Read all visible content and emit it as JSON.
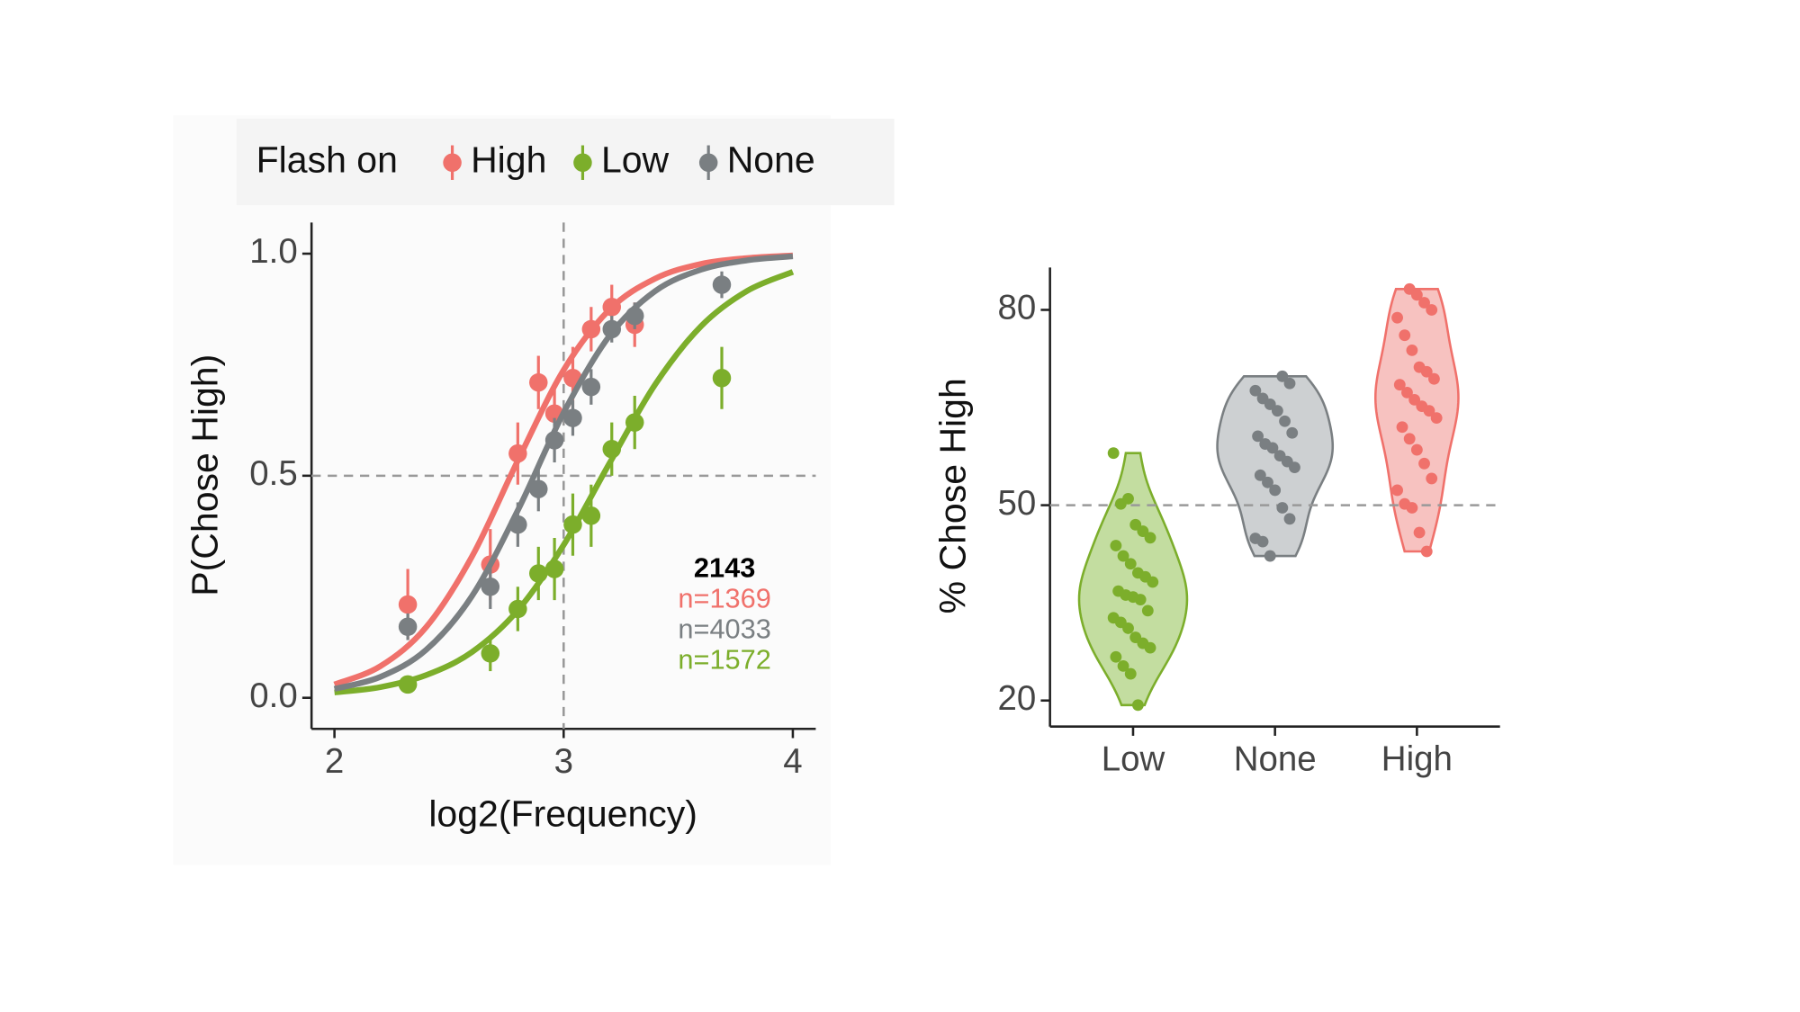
{
  "chart_data": [
    {
      "type": "psychometric",
      "xlabel": "log2(Frequency)",
      "ylabel": "P(Chose High)",
      "legend_title": "Flash on",
      "xlim": [
        1.9,
        4.1
      ],
      "xticks": [
        2,
        3,
        4
      ],
      "ylim": [
        -0.07,
        1.07
      ],
      "yticks": [
        {
          "value": 0,
          "label": "0.0"
        },
        0.5,
        {
          "value": 1,
          "label": "1.0"
        }
      ],
      "vline": 3,
      "hline": 0.5,
      "fit_x": [
        2.0,
        2.2,
        2.4,
        2.6,
        2.8,
        3.0,
        3.2,
        3.4,
        3.6,
        3.8,
        4.0
      ],
      "series": [
        {
          "name": "High",
          "color": "#F0716B",
          "x": [
            2.32,
            2.68,
            2.8,
            2.89,
            2.96,
            3.04,
            3.12,
            3.21,
            3.31
          ],
          "values": [
            0.21,
            0.3,
            0.55,
            0.71,
            0.64,
            0.72,
            0.83,
            0.88,
            0.84
          ],
          "errors": [
            0.08,
            0.08,
            0.07,
            0.06,
            0.07,
            0.07,
            0.05,
            0.05,
            0.05
          ],
          "fit": [
            0.03,
            0.071,
            0.159,
            0.318,
            0.534,
            0.738,
            0.874,
            0.944,
            0.977,
            0.99,
            0.996
          ]
        },
        {
          "name": "Low",
          "color": "#7CAE2B",
          "x": [
            2.32,
            2.68,
            2.8,
            2.89,
            2.96,
            3.04,
            3.12,
            3.21,
            3.31,
            3.69
          ],
          "values": [
            0.03,
            0.1,
            0.2,
            0.28,
            0.29,
            0.39,
            0.41,
            0.56,
            0.62,
            0.72
          ],
          "errors": [
            0.02,
            0.04,
            0.05,
            0.06,
            0.07,
            0.07,
            0.07,
            0.06,
            0.06,
            0.07
          ],
          "fit": [
            0.012,
            0.024,
            0.051,
            0.103,
            0.197,
            0.344,
            0.528,
            0.706,
            0.837,
            0.916,
            0.959
          ]
        },
        {
          "name": "None",
          "color": "#7A7F82",
          "x": [
            2.32,
            2.68,
            2.8,
            2.89,
            2.96,
            3.04,
            3.12,
            3.21,
            3.31,
            3.69
          ],
          "values": [
            0.16,
            0.25,
            0.39,
            0.47,
            0.58,
            0.63,
            0.7,
            0.83,
            0.86,
            0.93
          ],
          "errors": [
            0.03,
            0.05,
            0.05,
            0.05,
            0.05,
            0.04,
            0.04,
            0.03,
            0.03,
            0.03
          ],
          "fit": [
            0.02,
            0.047,
            0.108,
            0.229,
            0.422,
            0.642,
            0.815,
            0.916,
            0.964,
            0.985,
            0.994
          ]
        }
      ],
      "annotations": [
        {
          "text": "2143",
          "color": "#000000"
        },
        {
          "text": "n=1369",
          "color": "#F0716B"
        },
        {
          "text": "n=4033",
          "color": "#7A7F82"
        },
        {
          "text": "n=1572",
          "color": "#7CAE2B"
        }
      ]
    },
    {
      "type": "violin",
      "ylabel": "% Chose High",
      "ylim": [
        16,
        86.5
      ],
      "yticks": [
        20,
        50,
        80
      ],
      "hline": 50,
      "series": [
        {
          "name": "Low",
          "color": "#7CAE2B",
          "fill": "#C3DDA0",
          "values": [
            58,
            50.2,
            51,
            47,
            46,
            45,
            43.8,
            42.2,
            41,
            39.6,
            39,
            38.2,
            36.8,
            36.2,
            35.9,
            35.5,
            33.8,
            32.7,
            32,
            31.1,
            29.7,
            28.8,
            28.1,
            26.7,
            25.3,
            24.1,
            19.3
          ]
        },
        {
          "name": "None",
          "color": "#7A7F82",
          "fill": "#CDD0D2",
          "values": [
            69.8,
            68.7,
            67.6,
            66.4,
            65.5,
            64.5,
            62.9,
            61.1,
            60.6,
            59.4,
            58.8,
            57.6,
            56.7,
            55.8,
            54.6,
            53.5,
            52.3,
            49.6,
            47.9,
            44.9,
            44.4,
            42.2
          ]
        },
        {
          "name": "High",
          "color": "#F0716B",
          "fill": "#F7C2C0",
          "values": [
            83.2,
            82.3,
            81.1,
            80,
            78.8,
            76.1,
            73.8,
            71.2,
            70.5,
            69.4,
            68.5,
            67.3,
            66.2,
            65.2,
            64.5,
            63.4,
            62,
            60.2,
            58.5,
            56.4,
            54.1,
            52.3,
            50.2,
            49.6,
            45.8,
            42.9
          ]
        }
      ]
    }
  ]
}
